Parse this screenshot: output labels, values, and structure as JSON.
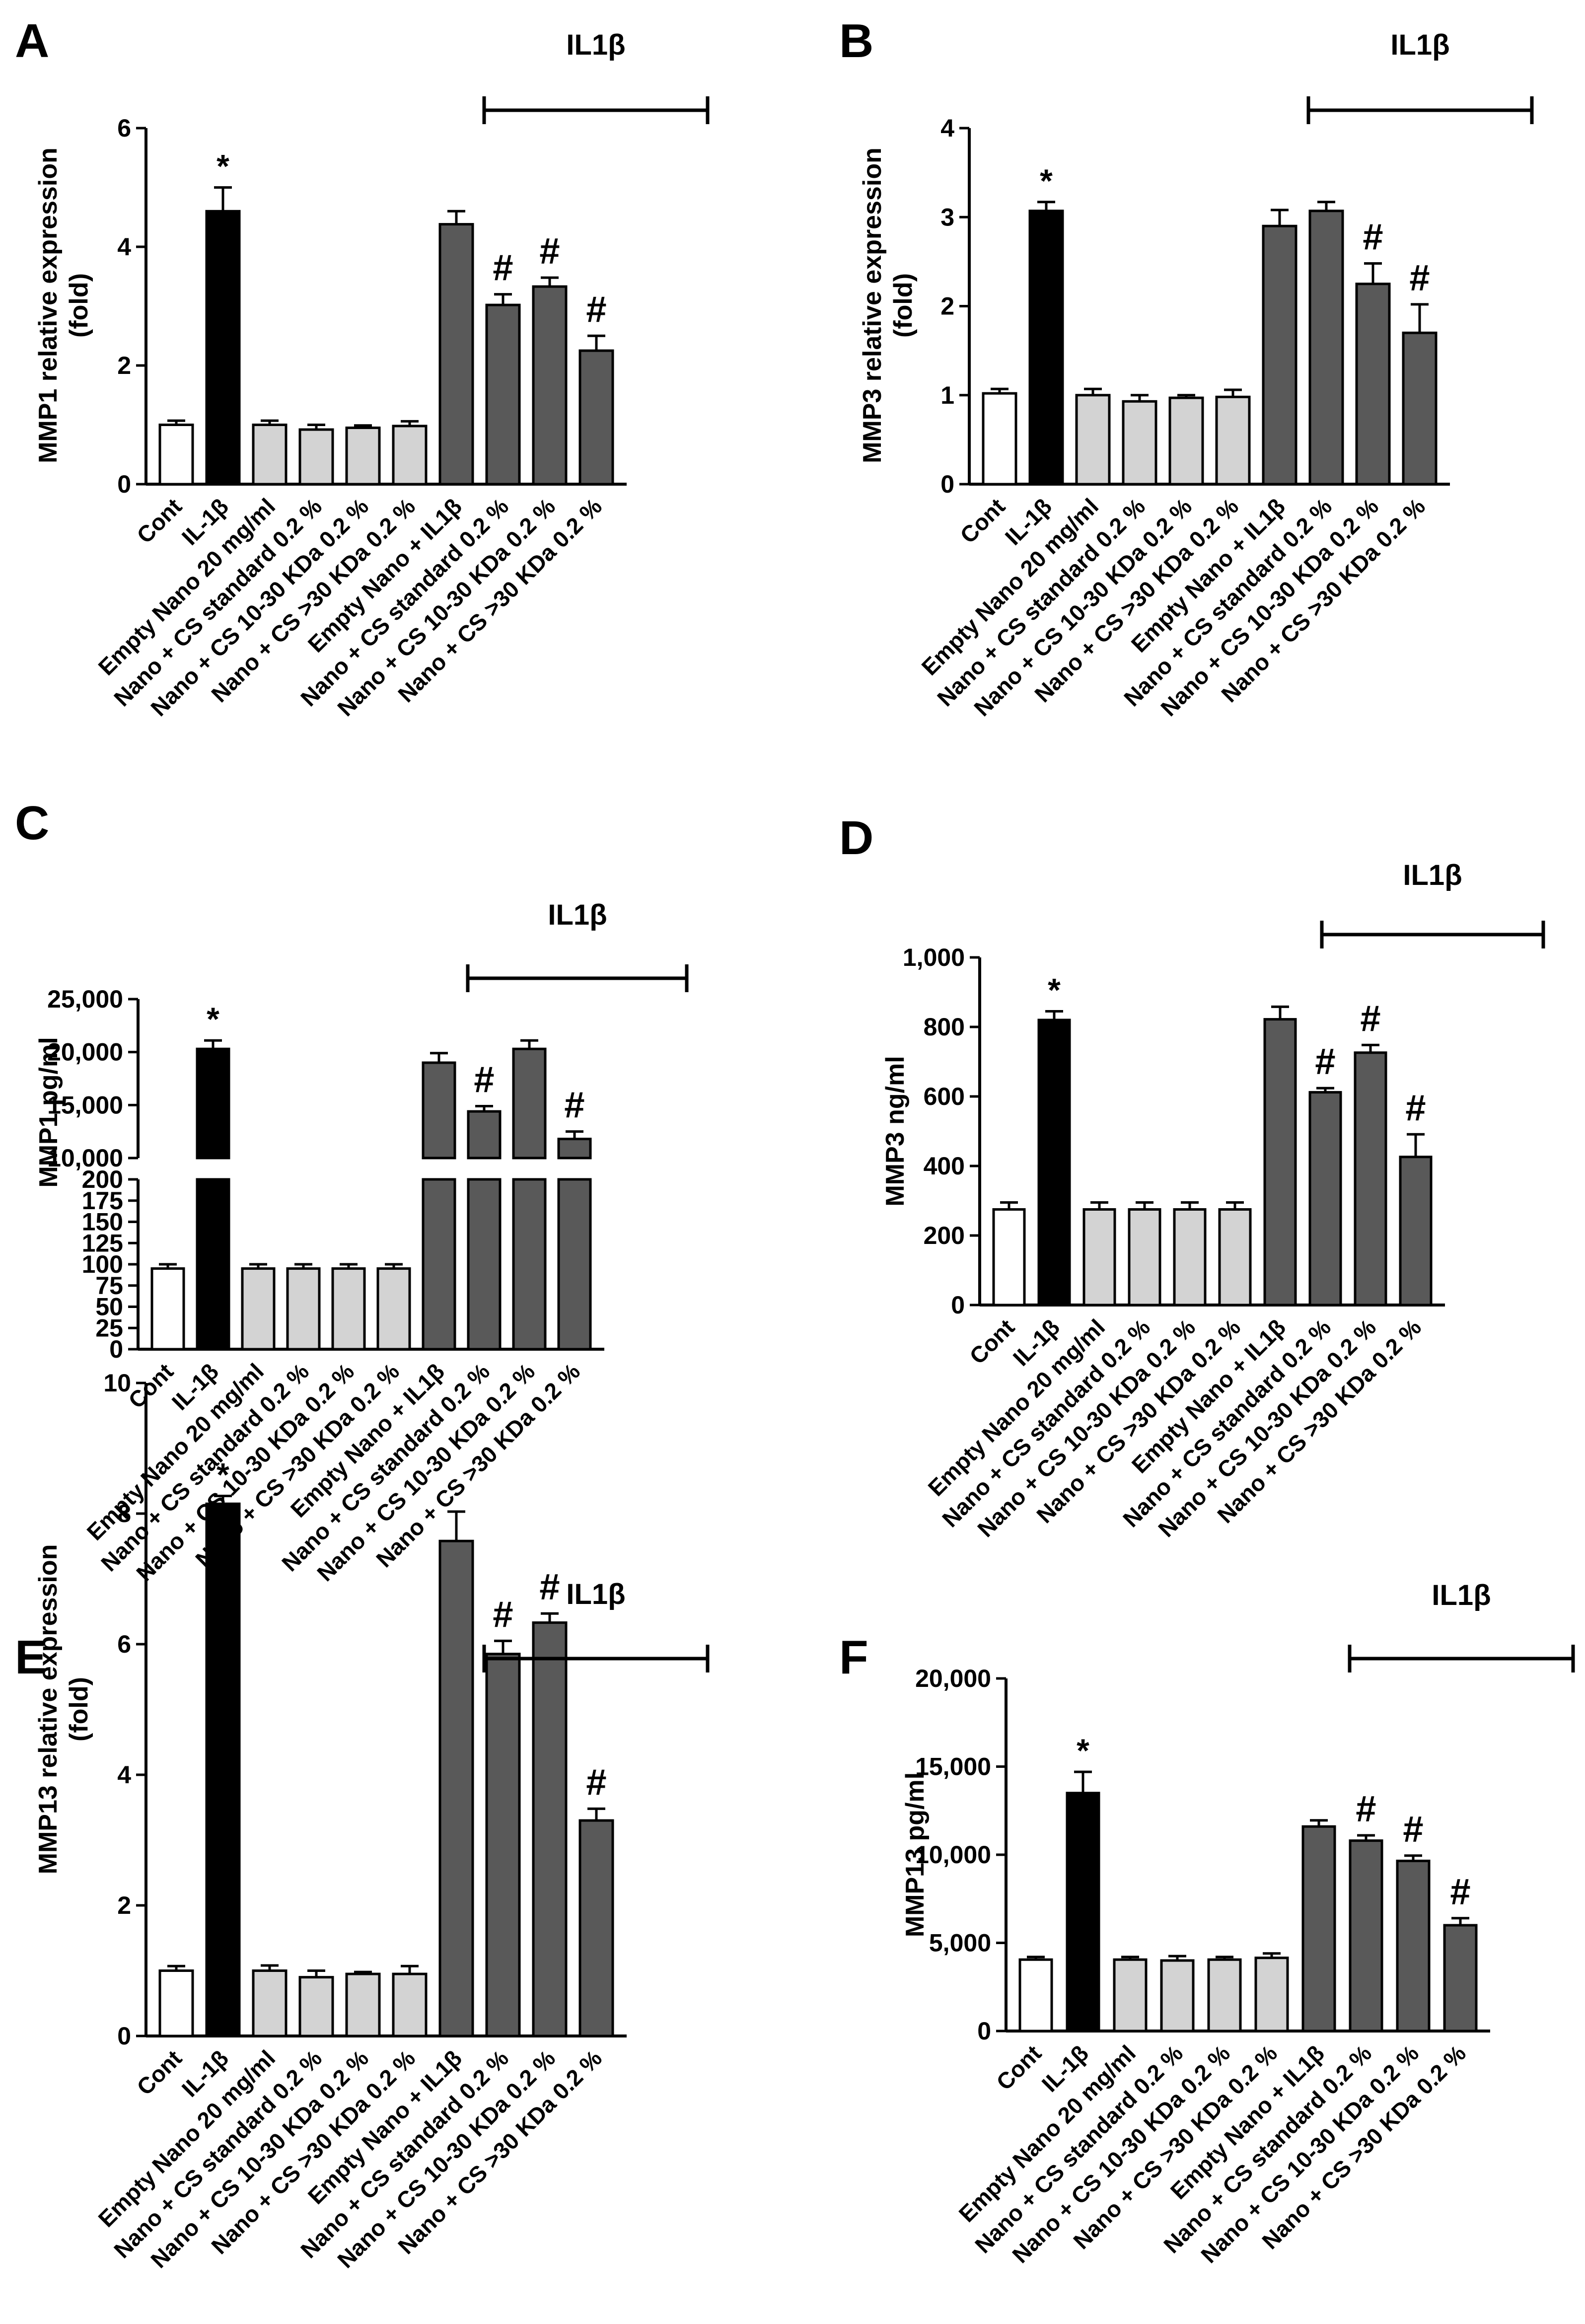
{
  "categories": [
    "Cont",
    "IL-1β",
    "Empty Nano 20 mg/ml",
    "Nano + CS standard 0.2 %",
    "Nano + CS 10-30 KDa 0.2 %",
    "Nano + CS >30 KDa 0.2 %",
    "Empty Nano + IL1β",
    "Nano + CS standard 0.2 %",
    "Nano + CS 10-30 KDa 0.2 %",
    "Nano + CS >30 KDa 0.2 %"
  ],
  "colors": {
    "control": "#ffffff",
    "il1b": "#000000",
    "nano": "#d3d3d3",
    "treated": "#595959",
    "axis": "#000000"
  },
  "chart_data": [
    {
      "panel": "A",
      "type": "bar",
      "ylabel_lines": [
        "MMP1 relative expression",
        "(fold)"
      ],
      "ylim": [
        0,
        6
      ],
      "yticks": [
        0,
        2,
        4,
        6
      ],
      "ytick_labels": [
        "0",
        "2",
        "4",
        "6"
      ],
      "values": [
        1.0,
        4.6,
        1.0,
        0.92,
        0.95,
        0.98,
        4.38,
        3.02,
        3.33,
        2.25
      ],
      "errors": [
        0.07,
        0.4,
        0.07,
        0.08,
        0.04,
        0.08,
        0.22,
        0.18,
        0.15,
        0.25
      ],
      "markers": [
        "",
        "*",
        "",
        "",
        "",
        "",
        "",
        "#",
        "#",
        "#"
      ],
      "group_label": "IL1β"
    },
    {
      "panel": "B",
      "type": "bar",
      "ylabel_lines": [
        "MMP3 relative expression",
        "(fold)"
      ],
      "ylim": [
        0,
        4
      ],
      "yticks": [
        0,
        1,
        2,
        3,
        4
      ],
      "ytick_labels": [
        "0",
        "1",
        "2",
        "3",
        "4"
      ],
      "values": [
        1.02,
        3.07,
        1.0,
        0.93,
        0.97,
        0.98,
        2.9,
        3.07,
        2.25,
        1.7
      ],
      "errors": [
        0.05,
        0.1,
        0.07,
        0.07,
        0.03,
        0.08,
        0.18,
        0.1,
        0.23,
        0.32
      ],
      "markers": [
        "",
        "*",
        "",
        "",
        "",
        "",
        "",
        "",
        "#",
        "#"
      ],
      "group_label": "IL1β"
    },
    {
      "panel": "C",
      "type": "bar",
      "broken_axis": true,
      "ylabel_lines": [
        "MMP1 pg/ml"
      ],
      "lower_ylim": [
        0,
        200
      ],
      "lower_yticks": [
        0,
        25,
        50,
        75,
        100,
        125,
        150,
        175,
        200
      ],
      "lower_ytick_labels": [
        "0",
        "25",
        "50",
        "75",
        "100",
        "125",
        "150",
        "175",
        "200"
      ],
      "upper_ylim": [
        10000,
        25000
      ],
      "upper_yticks": [
        10000,
        15000,
        20000,
        25000
      ],
      "upper_ytick_labels": [
        "10,000",
        "15,000",
        "20,000",
        "25,000"
      ],
      "values": [
        95,
        20300,
        95,
        95,
        95,
        95,
        19000,
        14400,
        20300,
        11800
      ],
      "errors": [
        5,
        800,
        5,
        5,
        5,
        5,
        900,
        500,
        800,
        700
      ],
      "markers": [
        "",
        "*",
        "",
        "",
        "",
        "",
        "",
        "#",
        "",
        "#"
      ],
      "group_label": "IL1β"
    },
    {
      "panel": "D",
      "type": "bar",
      "ylabel_lines": [
        "MMP3 ng/ml"
      ],
      "ylim": [
        0,
        1000
      ],
      "yticks": [
        0,
        200,
        400,
        600,
        800,
        1000
      ],
      "ytick_labels": [
        "0",
        "200",
        "400",
        "600",
        "800",
        "1,000"
      ],
      "values": [
        275,
        820,
        275,
        275,
        275,
        275,
        822,
        612,
        726,
        426
      ],
      "errors": [
        20,
        25,
        20,
        20,
        20,
        20,
        36,
        12,
        22,
        65
      ],
      "markers": [
        "",
        "*",
        "",
        "",
        "",
        "",
        "",
        "#",
        "#",
        "#"
      ],
      "group_label": "IL1β"
    },
    {
      "panel": "E",
      "type": "bar",
      "ylabel_lines": [
        "MMP13 relative expression",
        "(fold)"
      ],
      "ylim": [
        0,
        10
      ],
      "yticks": [
        0,
        2,
        4,
        6,
        8,
        10
      ],
      "ytick_labels": [
        "0",
        "2",
        "4",
        "6",
        "8",
        "10"
      ],
      "values": [
        1.0,
        8.15,
        1.0,
        0.9,
        0.95,
        0.95,
        7.58,
        5.85,
        6.33,
        3.3
      ],
      "errors": [
        0.07,
        0.12,
        0.08,
        0.1,
        0.03,
        0.12,
        0.45,
        0.2,
        0.14,
        0.18
      ],
      "markers": [
        "",
        "*",
        "",
        "",
        "",
        "",
        "",
        "#",
        "#",
        "#"
      ],
      "group_label": "IL1β"
    },
    {
      "panel": "F",
      "type": "bar",
      "ylabel_lines": [
        "MMP13 pg/ml"
      ],
      "ylim": [
        0,
        20000
      ],
      "yticks": [
        0,
        5000,
        10000,
        15000,
        20000
      ],
      "ytick_labels": [
        "0",
        "5,000",
        "10,000",
        "15,000",
        "20,000"
      ],
      "values": [
        4050,
        13500,
        4050,
        4000,
        4050,
        4150,
        11600,
        10800,
        9650,
        6000
      ],
      "errors": [
        150,
        1200,
        150,
        250,
        150,
        250,
        350,
        300,
        300,
        400
      ],
      "markers": [
        "",
        "*",
        "",
        "",
        "",
        "",
        "",
        "#",
        "#",
        "#"
      ],
      "group_label": "IL1β"
    }
  ]
}
